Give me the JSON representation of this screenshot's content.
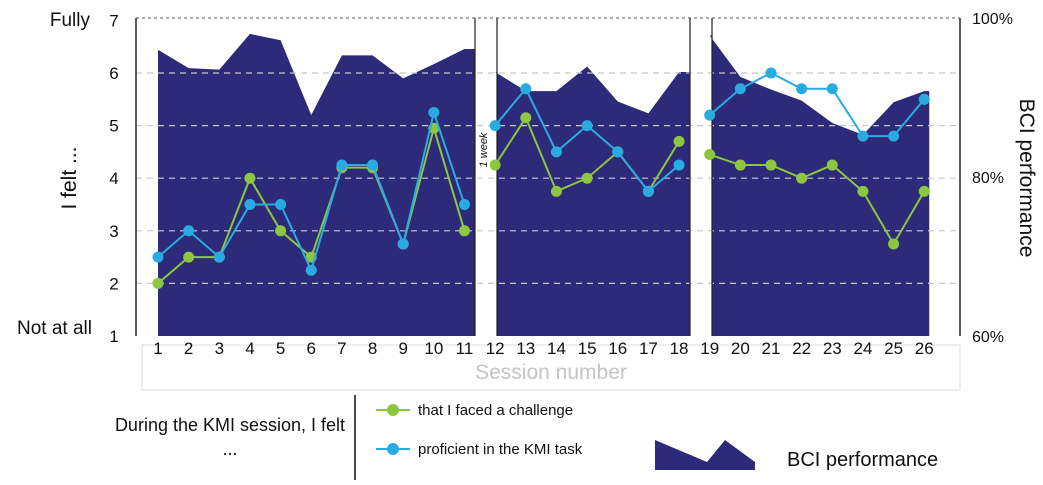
{
  "chart_data": {
    "type": "line",
    "xlabel": "Session number",
    "ylabel": "I felt ...",
    "y2label": "BCI performance",
    "ylim": [
      1,
      7
    ],
    "y2lim": [
      60,
      100
    ],
    "y_ticks": [
      "1",
      "2",
      "3",
      "4",
      "5",
      "6",
      "7"
    ],
    "y_extreme_labels": {
      "top": "Fully",
      "bottom": "Not at all"
    },
    "y2_ticks": [
      "60%",
      "80%",
      "100%"
    ],
    "x_ticks": [
      "1",
      "2",
      "3",
      "4",
      "5",
      "6",
      "7",
      "8",
      "9",
      "10",
      "11",
      "12",
      "13",
      "14",
      "15",
      "16",
      "17",
      "18",
      "19",
      "20",
      "21",
      "22",
      "23",
      "24",
      "25",
      "26"
    ],
    "gap_annotation": "1 week",
    "panels": [
      [
        1,
        11
      ],
      [
        12,
        18
      ],
      [
        19,
        26
      ]
    ],
    "series": [
      {
        "name": "that I faced a challenge",
        "kind": "line",
        "color": "#8dc63f",
        "x": [
          1,
          2,
          3,
          4,
          5,
          6,
          7,
          8,
          9,
          10,
          11,
          12,
          13,
          14,
          15,
          16,
          17,
          18,
          19,
          20,
          21,
          22,
          23,
          24,
          25,
          26
        ],
        "values": [
          2.0,
          2.5,
          2.5,
          4.0,
          3.0,
          2.5,
          4.2,
          4.2,
          2.75,
          4.95,
          3.0,
          4.25,
          5.15,
          3.75,
          4.0,
          4.5,
          3.75,
          4.7,
          4.45,
          4.25,
          4.25,
          4.0,
          4.25,
          3.75,
          2.75,
          3.75
        ]
      },
      {
        "name": "proficient in the KMI task",
        "kind": "line",
        "color": "#29abe2",
        "x": [
          1,
          2,
          3,
          4,
          5,
          6,
          7,
          8,
          9,
          10,
          11,
          12,
          13,
          14,
          15,
          16,
          17,
          18,
          19,
          20,
          21,
          22,
          23,
          24,
          25,
          26
        ],
        "values": [
          2.5,
          3.0,
          2.5,
          3.5,
          3.5,
          2.25,
          4.25,
          4.25,
          2.75,
          5.25,
          3.5,
          5.0,
          5.7,
          4.5,
          5.0,
          4.5,
          3.75,
          4.25,
          5.2,
          5.7,
          6.0,
          5.7,
          5.7,
          4.8,
          4.8,
          5.5
        ]
      },
      {
        "name": "BCI performance",
        "kind": "area",
        "axis": "right",
        "color": "#2e2a7a",
        "x": [
          1,
          2,
          3,
          4,
          5,
          6,
          7,
          8,
          9,
          10,
          11,
          12,
          13,
          14,
          15,
          16,
          17,
          18,
          19,
          20,
          21,
          22,
          23,
          24,
          25,
          26
        ],
        "values": [
          96,
          93.7,
          93.5,
          98,
          97.2,
          87.8,
          95.3,
          95.3,
          92.4,
          94.2,
          96.1,
          93.2,
          90.8,
          90.8,
          93.9,
          89.5,
          88,
          93.2,
          97.8,
          92.6,
          91,
          89.6,
          86.8,
          85.3,
          89.4,
          90.8
        ]
      }
    ],
    "legend_caption": "During the KMI session, I felt ...",
    "legend": [
      {
        "label": "that I faced a challenge",
        "color": "#8dc63f"
      },
      {
        "label": "proficient in the KMI task",
        "color": "#29abe2"
      },
      {
        "label": "BCI performance",
        "color": "#2e2a7a"
      }
    ],
    "colors": {
      "area": "#2e2a7a",
      "green": "#8dc63f",
      "blue": "#29abe2",
      "grid": "#c8c8c8"
    }
  }
}
